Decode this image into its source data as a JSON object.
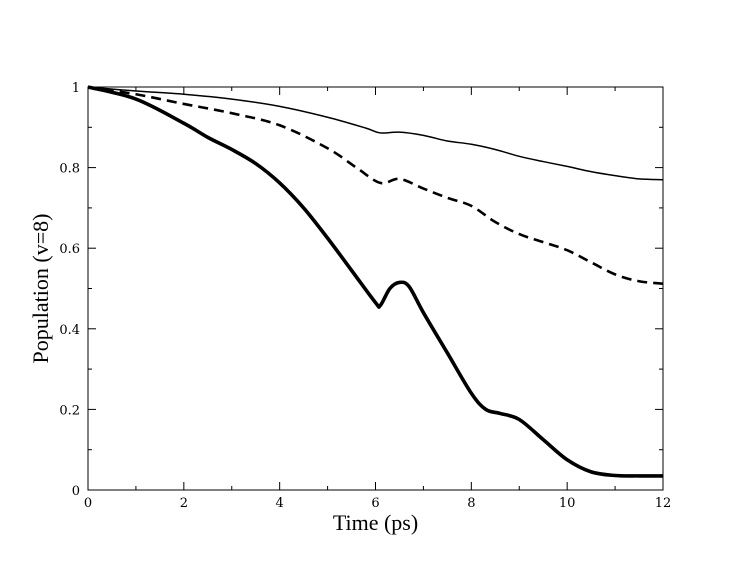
{
  "chart_data": {
    "type": "line",
    "title": "",
    "xlabel": "Time (ps)",
    "ylabel": "Population (v=8)",
    "xlim": [
      0,
      12
    ],
    "ylim": [
      0,
      1
    ],
    "xticks": [
      0,
      2,
      4,
      6,
      8,
      10,
      12
    ],
    "xtick_labels": [
      "0",
      "2",
      "4",
      "6",
      "8",
      "10",
      "12"
    ],
    "yticks": [
      0,
      0.2,
      0.4,
      0.6,
      0.8,
      1
    ],
    "ytick_labels": [
      "0",
      "0.2",
      "0.4",
      "0.6",
      "0.8",
      "1"
    ],
    "grid": false,
    "legend": "none",
    "series": [
      {
        "name": "thin solid",
        "style": "thin-solid",
        "color": "#000000",
        "x": [
          0,
          1,
          2,
          3,
          4,
          5,
          5.8,
          6.1,
          6.5,
          7,
          7.5,
          8,
          8.5,
          9,
          9.5,
          10,
          10.5,
          11,
          11.5,
          12
        ],
        "y": [
          1.0,
          0.99,
          0.982,
          0.97,
          0.952,
          0.925,
          0.898,
          0.886,
          0.888,
          0.88,
          0.866,
          0.858,
          0.845,
          0.828,
          0.815,
          0.803,
          0.79,
          0.78,
          0.772,
          0.77
        ]
      },
      {
        "name": "dashed",
        "style": "dashed",
        "color": "#000000",
        "x": [
          0,
          1,
          2,
          3,
          4,
          5,
          5.6,
          6.1,
          6.5,
          7,
          7.5,
          8,
          8.5,
          9,
          9.5,
          10,
          10.5,
          11,
          11.5,
          12
        ],
        "y": [
          1.0,
          0.982,
          0.958,
          0.935,
          0.905,
          0.848,
          0.8,
          0.762,
          0.772,
          0.748,
          0.725,
          0.705,
          0.665,
          0.635,
          0.615,
          0.595,
          0.565,
          0.535,
          0.518,
          0.512
        ]
      },
      {
        "name": "thick solid",
        "style": "thick-solid",
        "color": "#000000",
        "x": [
          0,
          1,
          2,
          2.5,
          3,
          3.5,
          4,
          4.5,
          5,
          5.5,
          6,
          6.1,
          6.3,
          6.5,
          6.7,
          7,
          7.5,
          8,
          8.3,
          8.6,
          9,
          9.5,
          10,
          10.5,
          11,
          11.5,
          12
        ],
        "y": [
          1.0,
          0.97,
          0.91,
          0.875,
          0.845,
          0.81,
          0.762,
          0.7,
          0.625,
          0.545,
          0.465,
          0.458,
          0.5,
          0.515,
          0.505,
          0.44,
          0.34,
          0.24,
          0.2,
          0.19,
          0.175,
          0.125,
          0.075,
          0.045,
          0.036,
          0.035,
          0.035
        ]
      }
    ]
  }
}
